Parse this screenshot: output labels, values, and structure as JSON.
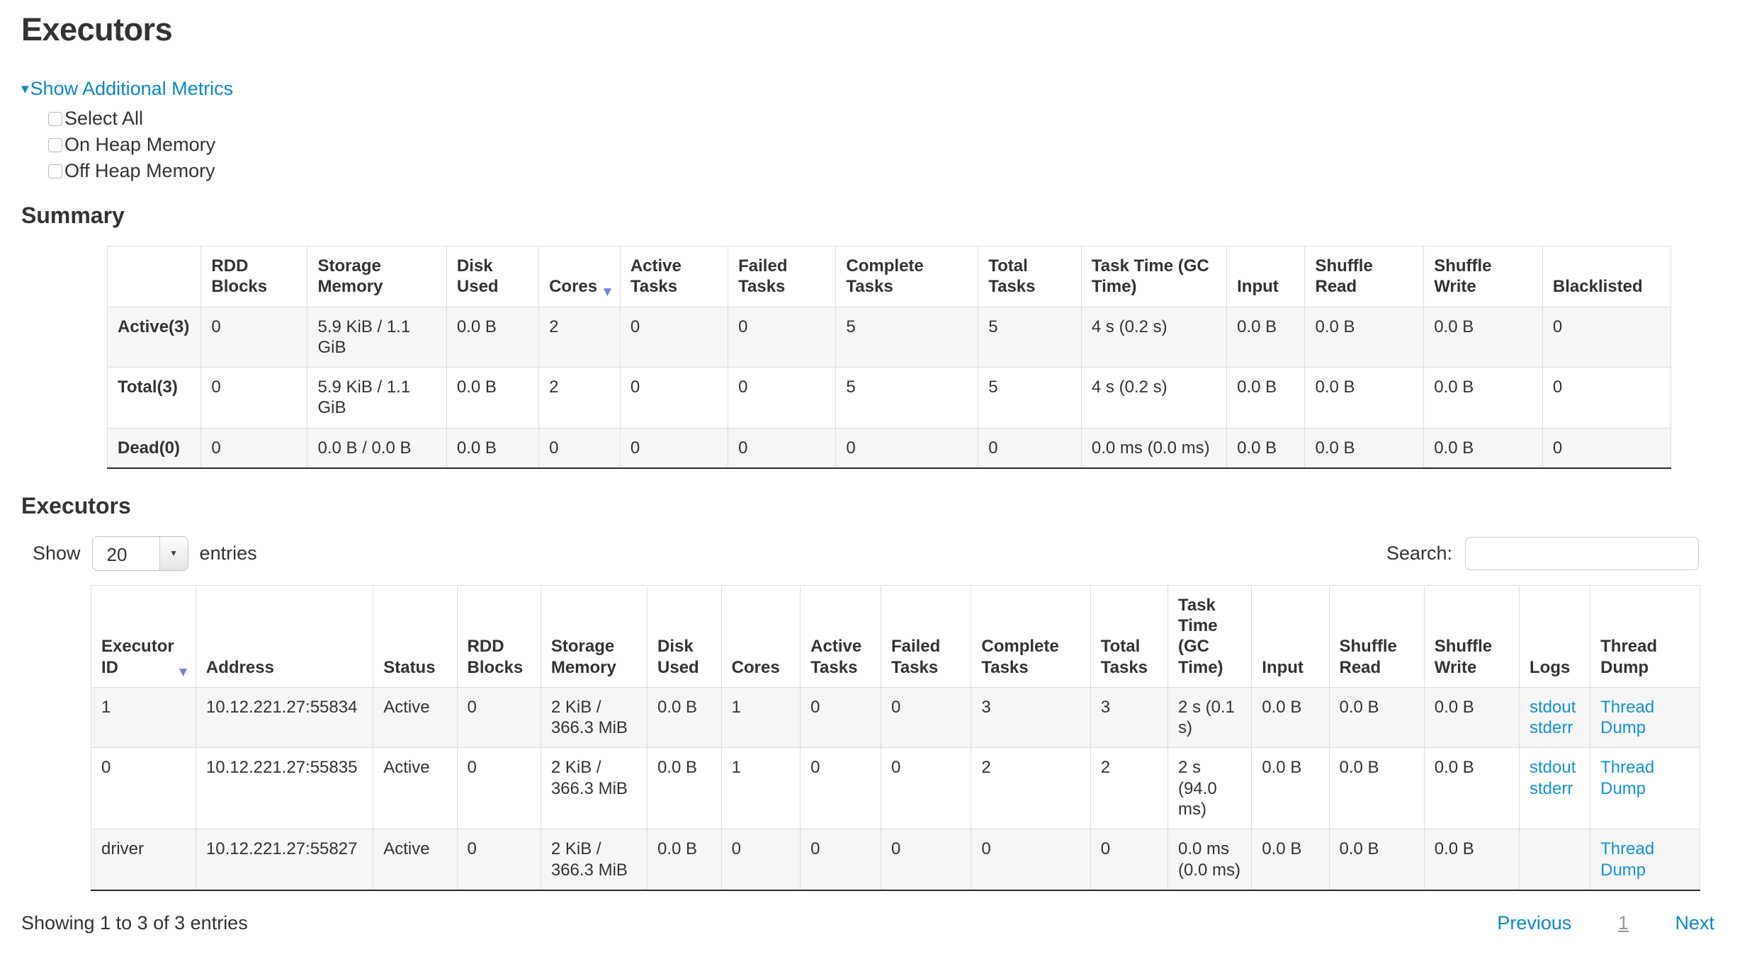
{
  "page_title": "Executors",
  "icons": {
    "metrics_toggle_caret": "▾",
    "sort_caret": "▼",
    "select_caret": "▼"
  },
  "colors": {
    "link_blue": "#0d87c9",
    "table_link_blue": "#1592d2",
    "sort_arrow": "#7d81dd",
    "stripe": "#f6f6f7",
    "border": "#dddddd",
    "text": "#333333"
  },
  "metrics_panel": {
    "toggle_label": "Show Additional Metrics",
    "checkboxes": [
      {
        "label": "Select All",
        "checked": false
      },
      {
        "label": "On Heap Memory",
        "checked": false
      },
      {
        "label": "Off Heap Memory",
        "checked": false
      }
    ]
  },
  "summary_section": {
    "heading": "Summary",
    "columns": [
      "",
      "RDD Blocks",
      "Storage Memory",
      "Disk Used",
      "Cores",
      "Active Tasks",
      "Failed Tasks",
      "Complete Tasks",
      "Total Tasks",
      "Task Time (GC Time)",
      "Input",
      "Shuffle Read",
      "Shuffle Write",
      "Blacklisted"
    ],
    "sorted_column": "Cores",
    "sort_direction": "desc",
    "rows": [
      {
        "label": "Active(3)",
        "values": [
          "0",
          "5.9 KiB / 1.1 GiB",
          "0.0 B",
          "2",
          "0",
          "0",
          "5",
          "5",
          "4 s (0.2 s)",
          "0.0 B",
          "0.0 B",
          "0.0 B",
          "0"
        ]
      },
      {
        "label": "Total(3)",
        "values": [
          "0",
          "5.9 KiB / 1.1 GiB",
          "0.0 B",
          "2",
          "0",
          "0",
          "5",
          "5",
          "4 s (0.2 s)",
          "0.0 B",
          "0.0 B",
          "0.0 B",
          "0"
        ]
      },
      {
        "label": "Dead(0)",
        "values": [
          "0",
          "0.0 B / 0.0 B",
          "0.0 B",
          "0",
          "0",
          "0",
          "0",
          "0",
          "0.0 ms (0.0 ms)",
          "0.0 B",
          "0.0 B",
          "0.0 B",
          "0"
        ]
      }
    ]
  },
  "executors_section": {
    "heading": "Executors",
    "length_control": {
      "show_label": "Show",
      "selected": "20",
      "entries_label": "entries"
    },
    "search": {
      "label": "Search:",
      "value": ""
    },
    "columns": [
      "Executor ID",
      "Address",
      "Status",
      "RDD Blocks",
      "Storage Memory",
      "Disk Used",
      "Cores",
      "Active Tasks",
      "Failed Tasks",
      "Complete Tasks",
      "Total Tasks",
      "Task Time (GC Time)",
      "Input",
      "Shuffle Read",
      "Shuffle Write",
      "Logs",
      "Thread Dump"
    ],
    "sorted_column": "Executor ID",
    "sort_direction": "desc",
    "rows": [
      {
        "cells": [
          "1",
          "10.12.221.27:55834",
          "Active",
          "0",
          "2 KiB / 366.3 MiB",
          "0.0 B",
          "1",
          "0",
          "0",
          "3",
          "3",
          "2 s (0.1 s)",
          "0.0 B",
          "0.0 B",
          "0.0 B"
        ],
        "logs": [
          "stdout",
          "stderr"
        ],
        "thread_dump": "Thread Dump"
      },
      {
        "cells": [
          "0",
          "10.12.221.27:55835",
          "Active",
          "0",
          "2 KiB / 366.3 MiB",
          "0.0 B",
          "1",
          "0",
          "0",
          "2",
          "2",
          "2 s (94.0 ms)",
          "0.0 B",
          "0.0 B",
          "0.0 B"
        ],
        "logs": [
          "stdout",
          "stderr"
        ],
        "thread_dump": "Thread Dump"
      },
      {
        "cells": [
          "driver",
          "10.12.221.27:55827",
          "Active",
          "0",
          "2 KiB / 366.3 MiB",
          "0.0 B",
          "0",
          "0",
          "0",
          "0",
          "0",
          "0.0 ms (0.0 ms)",
          "0.0 B",
          "0.0 B",
          "0.0 B"
        ],
        "logs": [],
        "thread_dump": "Thread Dump"
      }
    ],
    "pagination": {
      "info": "Showing 1 to 3 of 3 entries",
      "previous_label": "Previous",
      "current_page": "1",
      "next_label": "Next"
    }
  }
}
